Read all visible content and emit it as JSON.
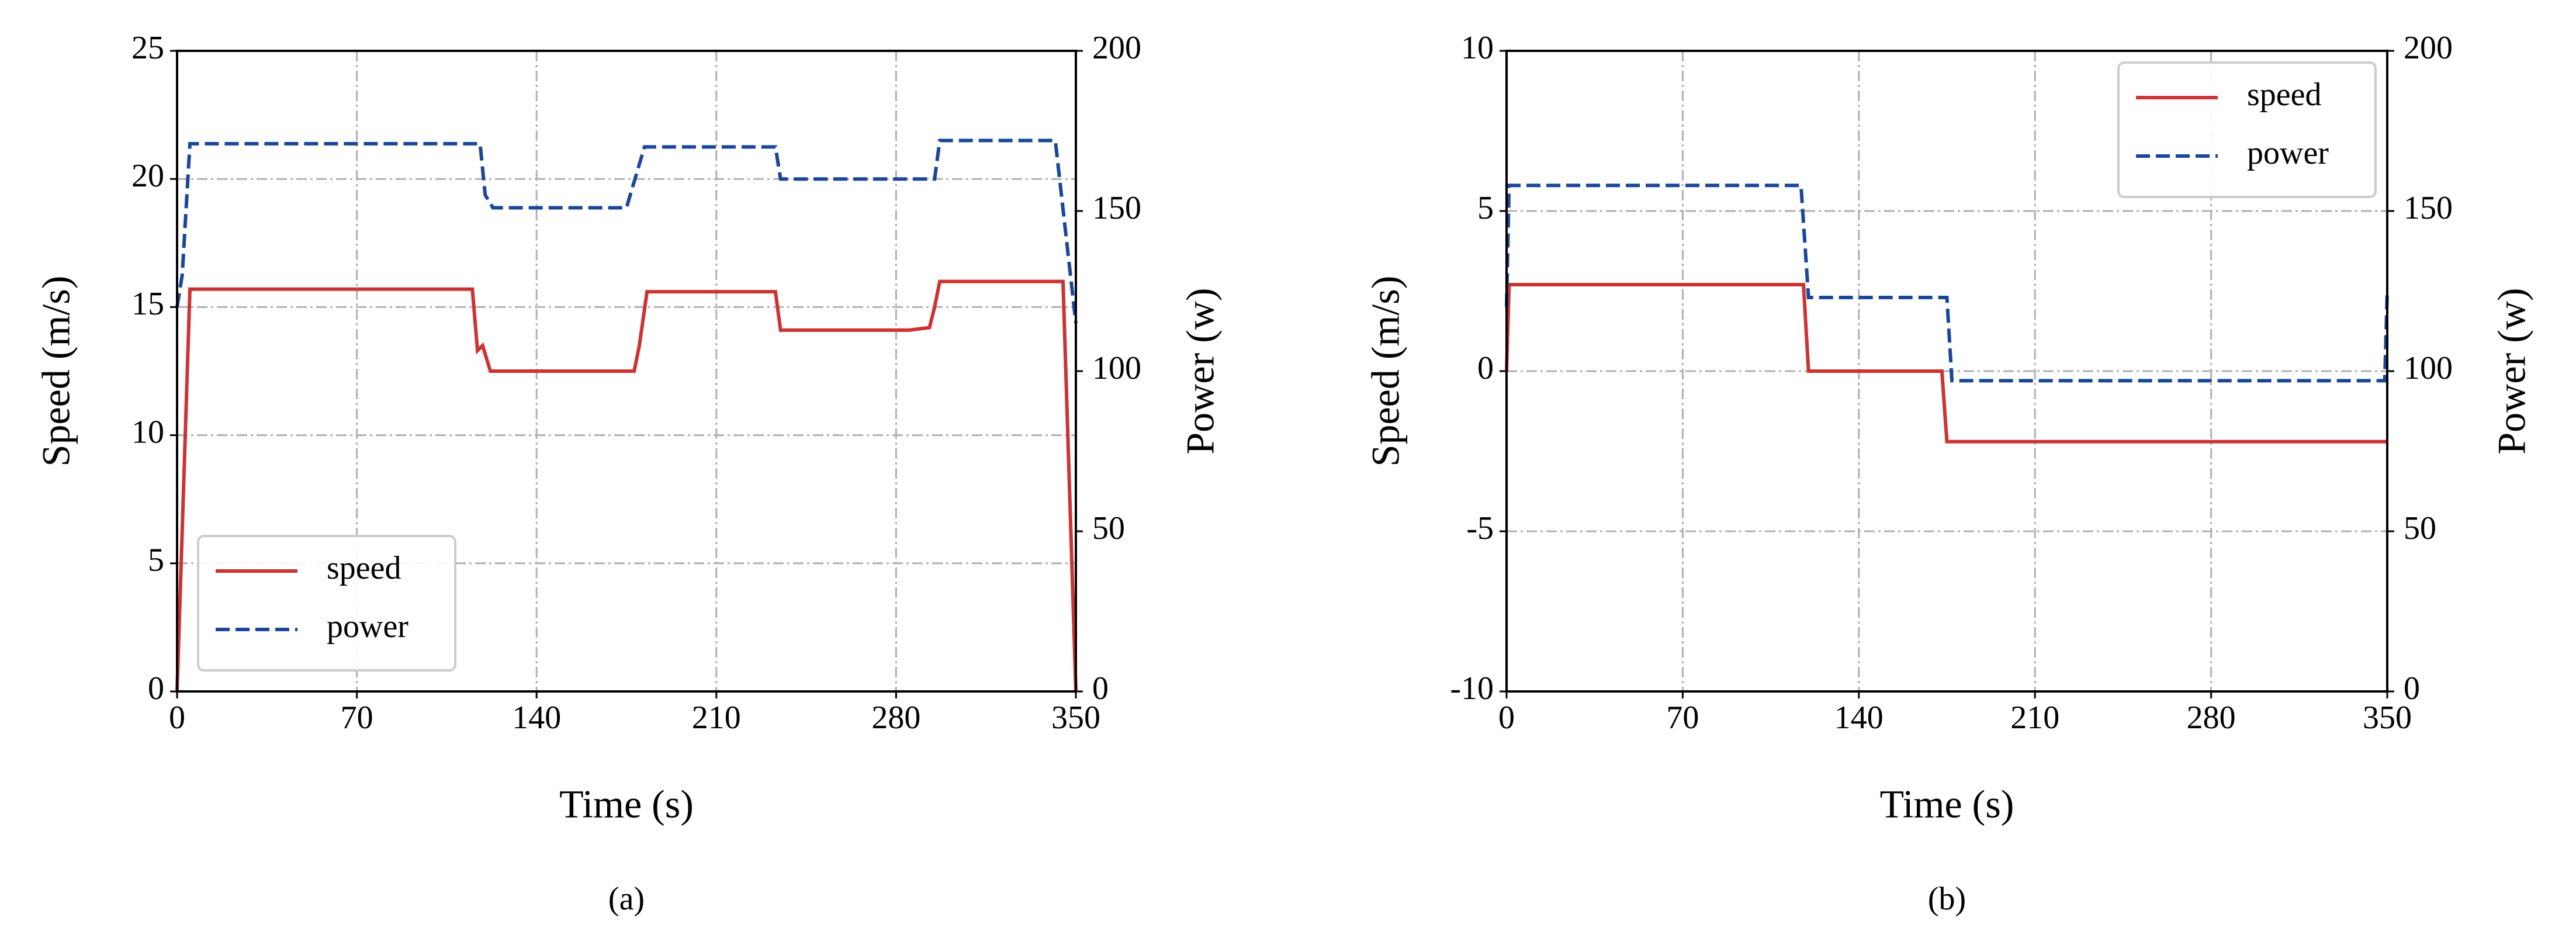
{
  "chart_data": [
    {
      "type": "line",
      "caption": "(a)",
      "xlabel": "Time (s)",
      "ylabel": "Speed (m/s)",
      "y2label": "Power (w)",
      "xlim": [
        0,
        350
      ],
      "xticks": [
        0,
        70,
        140,
        210,
        280,
        350
      ],
      "ylim": [
        0,
        25
      ],
      "yticks": [
        0,
        5,
        10,
        15,
        20,
        25
      ],
      "y2lim": [
        0,
        200
      ],
      "y2ticks": [
        0,
        50,
        100,
        150,
        200
      ],
      "grid": true,
      "legend": "lower left",
      "series": [
        {
          "name": "speed",
          "color": "#cc3333",
          "dash": false,
          "x": [
            0,
            5,
            115,
            117,
            119,
            122,
            178,
            180,
            183,
            233,
            235,
            285,
            293,
            295,
            297,
            345,
            350
          ],
          "values": [
            0,
            15.7,
            15.7,
            13.3,
            13.5,
            12.5,
            12.5,
            13.5,
            15.6,
            15.6,
            14.1,
            14.1,
            14.2,
            15,
            16,
            16,
            0
          ]
        },
        {
          "name": "power",
          "color": "#1a479a",
          "dash": true,
          "axis": "y2",
          "x": [
            0,
            2,
            5,
            118,
            120,
            123,
            175,
            182,
            233,
            235,
            295,
            297,
            342,
            350
          ],
          "values": [
            120,
            130,
            171,
            171,
            155,
            151,
            151,
            170,
            170,
            160,
            160,
            172,
            172,
            115
          ]
        }
      ]
    },
    {
      "type": "line",
      "caption": "(b)",
      "xlabel": "Time (s)",
      "ylabel": "Speed (m/s)",
      "y2label": "Power (w)",
      "xlim": [
        0,
        350
      ],
      "xticks": [
        0,
        70,
        140,
        210,
        280,
        350
      ],
      "ylim": [
        -10,
        10
      ],
      "yticks": [
        -10,
        -5,
        0,
        5,
        10
      ],
      "y2lim": [
        0,
        200
      ],
      "y2ticks": [
        0,
        50,
        100,
        150,
        200
      ],
      "grid": true,
      "legend": "upper right",
      "series": [
        {
          "name": "speed",
          "color": "#cc3333",
          "dash": false,
          "x": [
            0,
            1,
            118,
            120,
            173,
            175,
            350
          ],
          "values": [
            0,
            2.7,
            2.7,
            0,
            0,
            -2.2,
            -2.2
          ]
        },
        {
          "name": "power",
          "color": "#1a479a",
          "dash": true,
          "axis": "y2",
          "x": [
            0,
            1,
            117,
            120,
            175,
            177,
            349,
            350
          ],
          "values": [
            120,
            158,
            158,
            123,
            123,
            97,
            97,
            125
          ]
        }
      ]
    }
  ]
}
